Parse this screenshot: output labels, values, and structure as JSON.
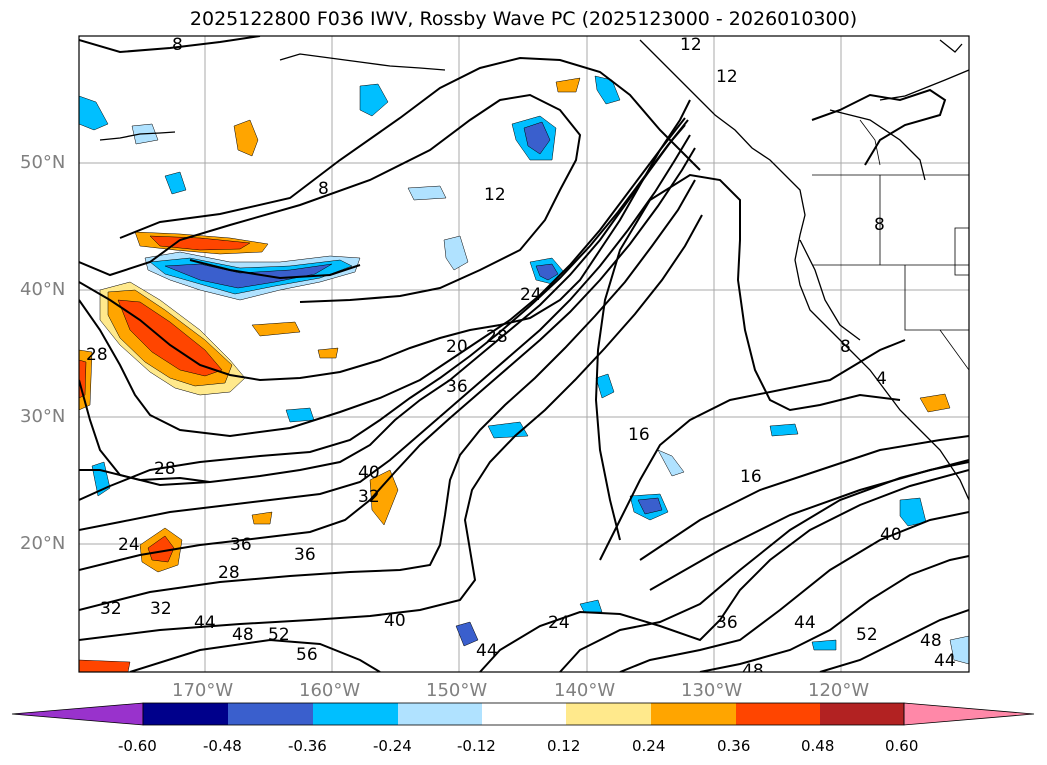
{
  "title": "2025122800 F036 IWV, Rossby Wave PC (2025123000 - 2026010300)",
  "map": {
    "lat_labels": [
      "50°N",
      "40°N",
      "30°N",
      "20°N"
    ],
    "lon_labels": [
      "170°W",
      "160°W",
      "150°W",
      "140°W",
      "130°W",
      "120°W"
    ],
    "contour_labels": [
      "8",
      "12",
      "8",
      "12",
      "12",
      "8",
      "24",
      "28",
      "20",
      "36",
      "28",
      "16",
      "16",
      "28",
      "40",
      "32",
      "24",
      "36",
      "36",
      "28",
      "40",
      "32",
      "32",
      "44",
      "48",
      "52",
      "56",
      "40",
      "44",
      "24",
      "36",
      "44",
      "52",
      "48",
      "48",
      "44",
      "8",
      "4"
    ]
  },
  "colorbar": {
    "ticks": [
      "-0.60",
      "-0.48",
      "-0.36",
      "-0.24",
      "-0.12",
      "0.12",
      "0.24",
      "0.36",
      "0.48",
      "0.60"
    ],
    "colors": {
      "under": "#9932CC",
      "bins": [
        "#00008B",
        "#3A5FCD",
        "#00BFFF",
        "#B0E2FF",
        "#FFFFFF",
        "#FFE98C",
        "#FFA500",
        "#FF4500",
        "#B22222"
      ],
      "over": "#FF88A8"
    }
  }
}
